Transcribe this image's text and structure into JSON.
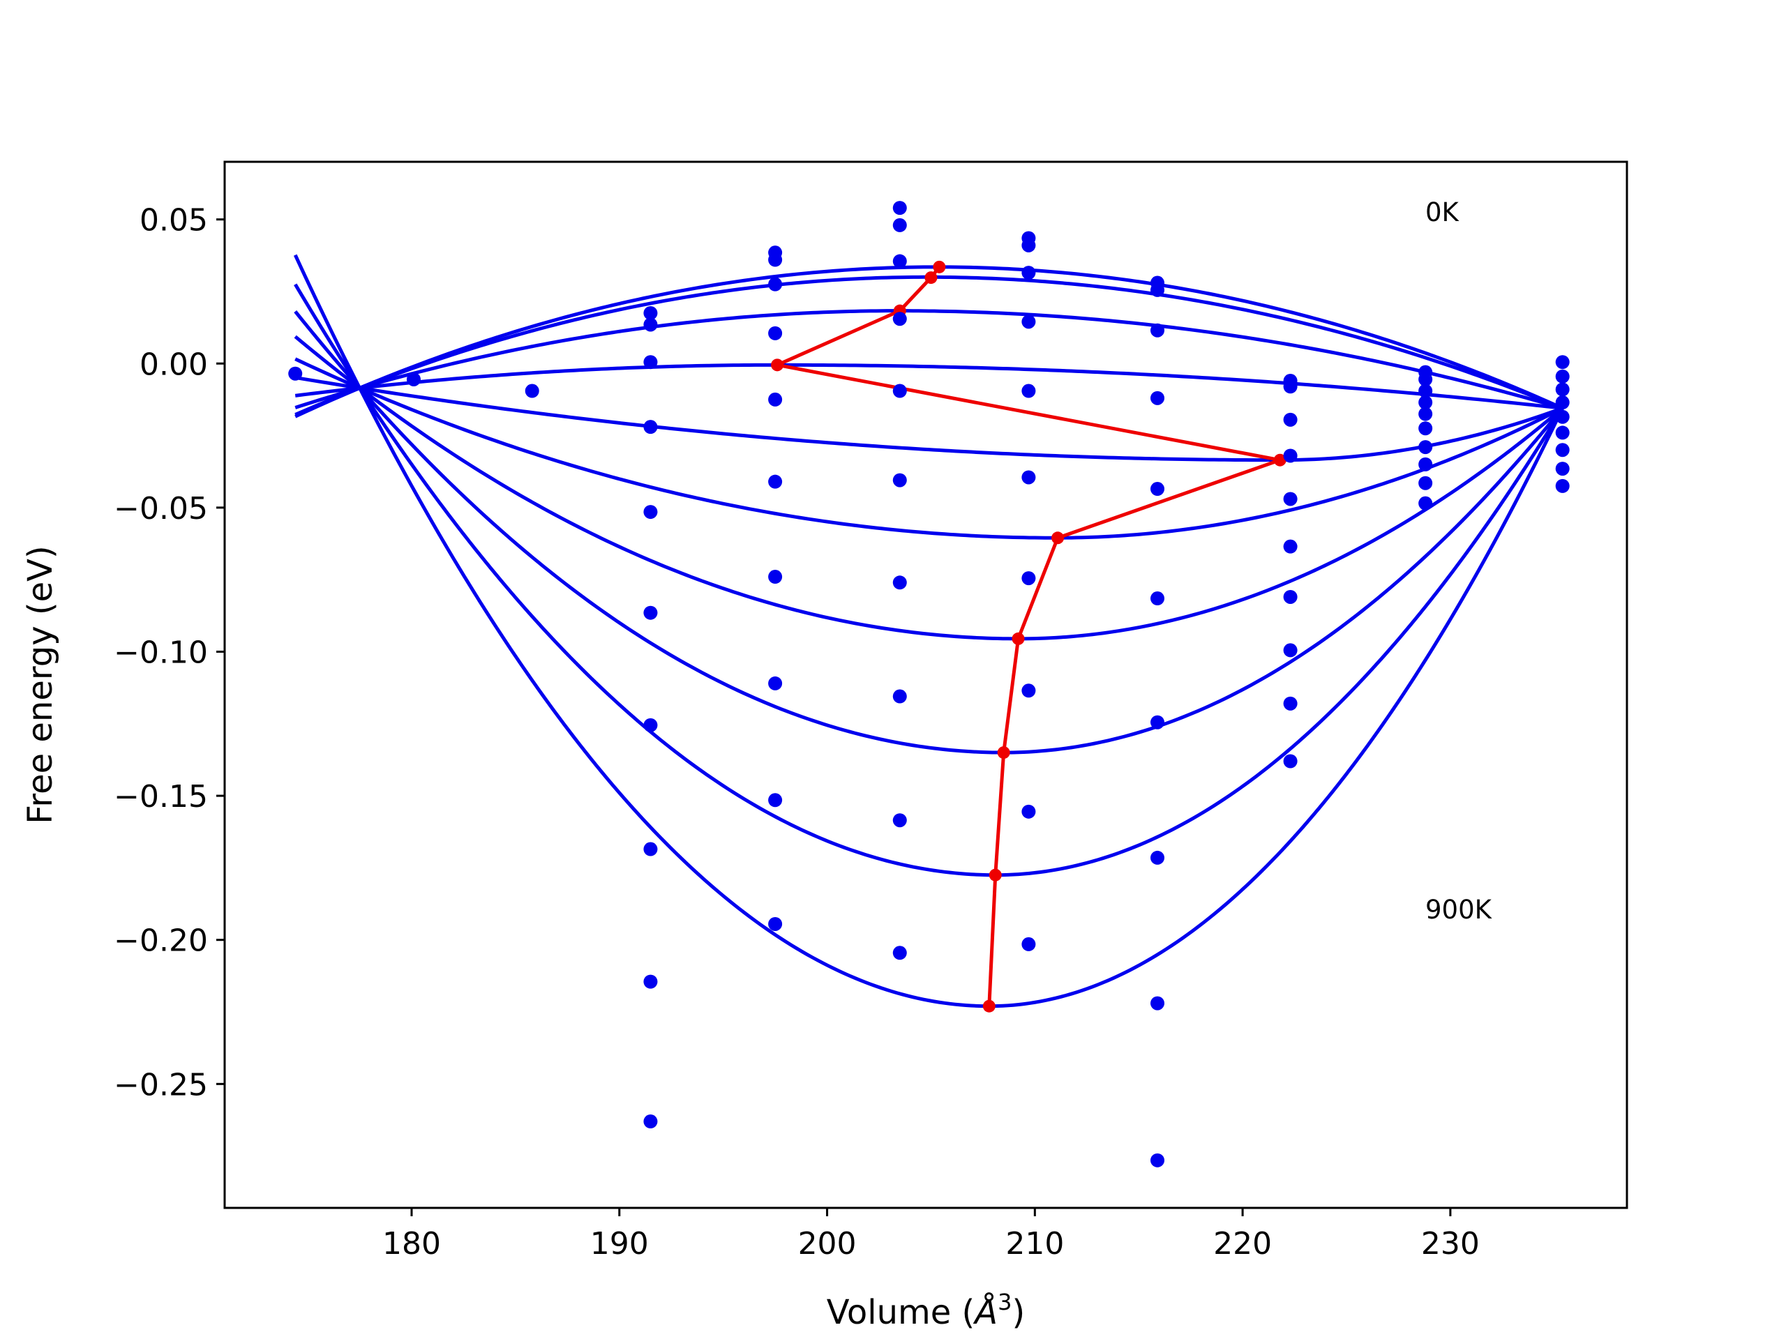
{
  "chart_data": {
    "type": "scatter",
    "title": "",
    "xlabel_prefix": "Volume (",
    "xlabel_unit": "Å",
    "xlabel_exp": "3",
    "xlabel_suffix": ")",
    "ylabel": "Free energy (eV)",
    "xlim": [
      171,
      238.5
    ],
    "ylim": [
      -0.293,
      0.07
    ],
    "xticks": [
      180,
      190,
      200,
      210,
      220,
      230
    ],
    "xtick_labels": [
      "180",
      "190",
      "200",
      "210",
      "220",
      "230"
    ],
    "yticks": [
      0.05,
      0.0,
      -0.05,
      -0.1,
      -0.15,
      -0.2,
      -0.25
    ],
    "ytick_labels": [
      "0.05",
      "0.00",
      "−0.05",
      "−0.10",
      "−0.15",
      "−0.20",
      "−0.25"
    ],
    "grid": false,
    "annotations": [
      {
        "text": "0K",
        "x": 228.8,
        "y": 0.052
      },
      {
        "text": "900K",
        "x": 228.8,
        "y": -0.19
      }
    ],
    "colors": {
      "fit_curves": "#0000ee",
      "points": "#0000ee",
      "minimum_path": "#ee0000"
    },
    "fit_curves": [
      {
        "V0": 205.3,
        "E0": 0.0335,
        "Ea": -0.0085,
        "Eb": -0.0155,
        "Va": 177.5,
        "Vb": 235.4,
        "Vstart": 174.4
      },
      {
        "V0": 204.8,
        "E0": 0.03,
        "Ea": -0.0085,
        "Eb": -0.0155,
        "Va": 177.5,
        "Vb": 235.4,
        "Vstart": 174.4
      },
      {
        "V0": 203.4,
        "E0": 0.0183,
        "Ea": -0.0085,
        "Eb": -0.0155,
        "Va": 177.5,
        "Vb": 235.4,
        "Vstart": 174.4
      },
      {
        "V0": 197.6,
        "E0": -0.0005,
        "Ea": -0.0085,
        "Eb": -0.0155,
        "Va": 177.5,
        "Vb": 235.4,
        "Vstart": 174.4
      },
      {
        "V0": 221.8,
        "E0": -0.0335,
        "Ea": -0.0085,
        "Eb": -0.0155,
        "Va": 177.5,
        "Vb": 235.4,
        "Vstart": 174.4
      },
      {
        "V0": 211.0,
        "E0": -0.0605,
        "Ea": -0.0085,
        "Eb": -0.0155,
        "Va": 177.5,
        "Vb": 235.4,
        "Vstart": 174.4
      },
      {
        "V0": 209.2,
        "E0": -0.0955,
        "Ea": -0.0085,
        "Eb": -0.0155,
        "Va": 177.5,
        "Vb": 235.4,
        "Vstart": 174.4
      },
      {
        "V0": 208.5,
        "E0": -0.135,
        "Ea": -0.0085,
        "Eb": -0.0155,
        "Va": 177.5,
        "Vb": 235.4,
        "Vstart": 174.4
      },
      {
        "V0": 208.1,
        "E0": -0.1775,
        "Ea": -0.0085,
        "Eb": -0.0155,
        "Va": 177.5,
        "Vb": 235.4,
        "Vstart": 174.4
      },
      {
        "V0": 207.8,
        "E0": -0.223,
        "Ea": -0.0085,
        "Eb": -0.0155,
        "Va": 177.5,
        "Vb": 235.4,
        "Vstart": 174.4
      }
    ],
    "minimum_path": {
      "x": [
        205.4,
        205.0,
        203.5,
        197.6,
        221.8,
        211.1,
        209.2,
        208.5,
        208.1,
        207.8
      ],
      "y": [
        0.0335,
        0.0298,
        0.0183,
        -0.0005,
        -0.0335,
        -0.0605,
        -0.0955,
        -0.135,
        -0.1775,
        -0.223
      ]
    },
    "points": [
      {
        "x": 174.4,
        "y": -0.0035
      },
      {
        "x": 180.1,
        "y": -0.0055
      },
      {
        "x": 185.8,
        "y": -0.0095
      },
      {
        "x": 191.5,
        "y": 0.0175
      },
      {
        "x": 191.5,
        "y": 0.0135
      },
      {
        "x": 191.5,
        "y": 0.0005
      },
      {
        "x": 191.5,
        "y": -0.022
      },
      {
        "x": 191.5,
        "y": -0.0515
      },
      {
        "x": 191.5,
        "y": -0.0865
      },
      {
        "x": 191.5,
        "y": -0.1255
      },
      {
        "x": 191.5,
        "y": -0.1685
      },
      {
        "x": 191.5,
        "y": -0.2145
      },
      {
        "x": 191.5,
        "y": -0.263
      },
      {
        "x": 197.5,
        "y": 0.0385
      },
      {
        "x": 197.5,
        "y": 0.036
      },
      {
        "x": 197.5,
        "y": 0.0275
      },
      {
        "x": 197.5,
        "y": 0.0105
      },
      {
        "x": 197.5,
        "y": -0.0125
      },
      {
        "x": 197.5,
        "y": -0.041
      },
      {
        "x": 197.5,
        "y": -0.074
      },
      {
        "x": 197.5,
        "y": -0.111
      },
      {
        "x": 197.5,
        "y": -0.1515
      },
      {
        "x": 197.5,
        "y": -0.1945
      },
      {
        "x": 203.5,
        "y": 0.054
      },
      {
        "x": 203.5,
        "y": 0.048
      },
      {
        "x": 203.5,
        "y": 0.0355
      },
      {
        "x": 203.5,
        "y": 0.0155
      },
      {
        "x": 203.5,
        "y": -0.0095
      },
      {
        "x": 203.5,
        "y": -0.0405
      },
      {
        "x": 203.5,
        "y": -0.076
      },
      {
        "x": 203.5,
        "y": -0.1155
      },
      {
        "x": 203.5,
        "y": -0.1585
      },
      {
        "x": 203.5,
        "y": -0.2045
      },
      {
        "x": 209.7,
        "y": 0.0435
      },
      {
        "x": 209.7,
        "y": 0.041
      },
      {
        "x": 209.7,
        "y": 0.0315
      },
      {
        "x": 209.7,
        "y": 0.0145
      },
      {
        "x": 209.7,
        "y": -0.0095
      },
      {
        "x": 209.7,
        "y": -0.0395
      },
      {
        "x": 209.7,
        "y": -0.0745
      },
      {
        "x": 209.7,
        "y": -0.1135
      },
      {
        "x": 209.7,
        "y": -0.1555
      },
      {
        "x": 209.7,
        "y": -0.2015
      },
      {
        "x": 215.9,
        "y": 0.028
      },
      {
        "x": 215.9,
        "y": 0.0255
      },
      {
        "x": 215.9,
        "y": 0.0115
      },
      {
        "x": 215.9,
        "y": -0.012
      },
      {
        "x": 215.9,
        "y": -0.0435
      },
      {
        "x": 215.9,
        "y": -0.0815
      },
      {
        "x": 215.9,
        "y": -0.1245
      },
      {
        "x": 215.9,
        "y": -0.1715
      },
      {
        "x": 215.9,
        "y": -0.222
      },
      {
        "x": 215.9,
        "y": -0.2765
      },
      {
        "x": 222.3,
        "y": -0.006
      },
      {
        "x": 222.3,
        "y": -0.008
      },
      {
        "x": 222.3,
        "y": -0.0195
      },
      {
        "x": 222.3,
        "y": -0.032
      },
      {
        "x": 222.3,
        "y": -0.047
      },
      {
        "x": 222.3,
        "y": -0.0635
      },
      {
        "x": 222.3,
        "y": -0.081
      },
      {
        "x": 222.3,
        "y": -0.0995
      },
      {
        "x": 222.3,
        "y": -0.118
      },
      {
        "x": 222.3,
        "y": -0.138
      },
      {
        "x": 228.8,
        "y": -0.003
      },
      {
        "x": 228.8,
        "y": -0.0055
      },
      {
        "x": 228.8,
        "y": -0.0095
      },
      {
        "x": 228.8,
        "y": -0.0135
      },
      {
        "x": 228.8,
        "y": -0.0175
      },
      {
        "x": 228.8,
        "y": -0.0225
      },
      {
        "x": 228.8,
        "y": -0.029
      },
      {
        "x": 228.8,
        "y": -0.035
      },
      {
        "x": 228.8,
        "y": -0.0415
      },
      {
        "x": 228.8,
        "y": -0.0485
      },
      {
        "x": 235.4,
        "y": 0.0005
      },
      {
        "x": 235.4,
        "y": -0.0045
      },
      {
        "x": 235.4,
        "y": -0.009
      },
      {
        "x": 235.4,
        "y": -0.0135
      },
      {
        "x": 235.4,
        "y": -0.0185
      },
      {
        "x": 235.4,
        "y": -0.024
      },
      {
        "x": 235.4,
        "y": -0.03
      },
      {
        "x": 235.4,
        "y": -0.0365
      },
      {
        "x": 235.4,
        "y": -0.0425
      }
    ]
  }
}
